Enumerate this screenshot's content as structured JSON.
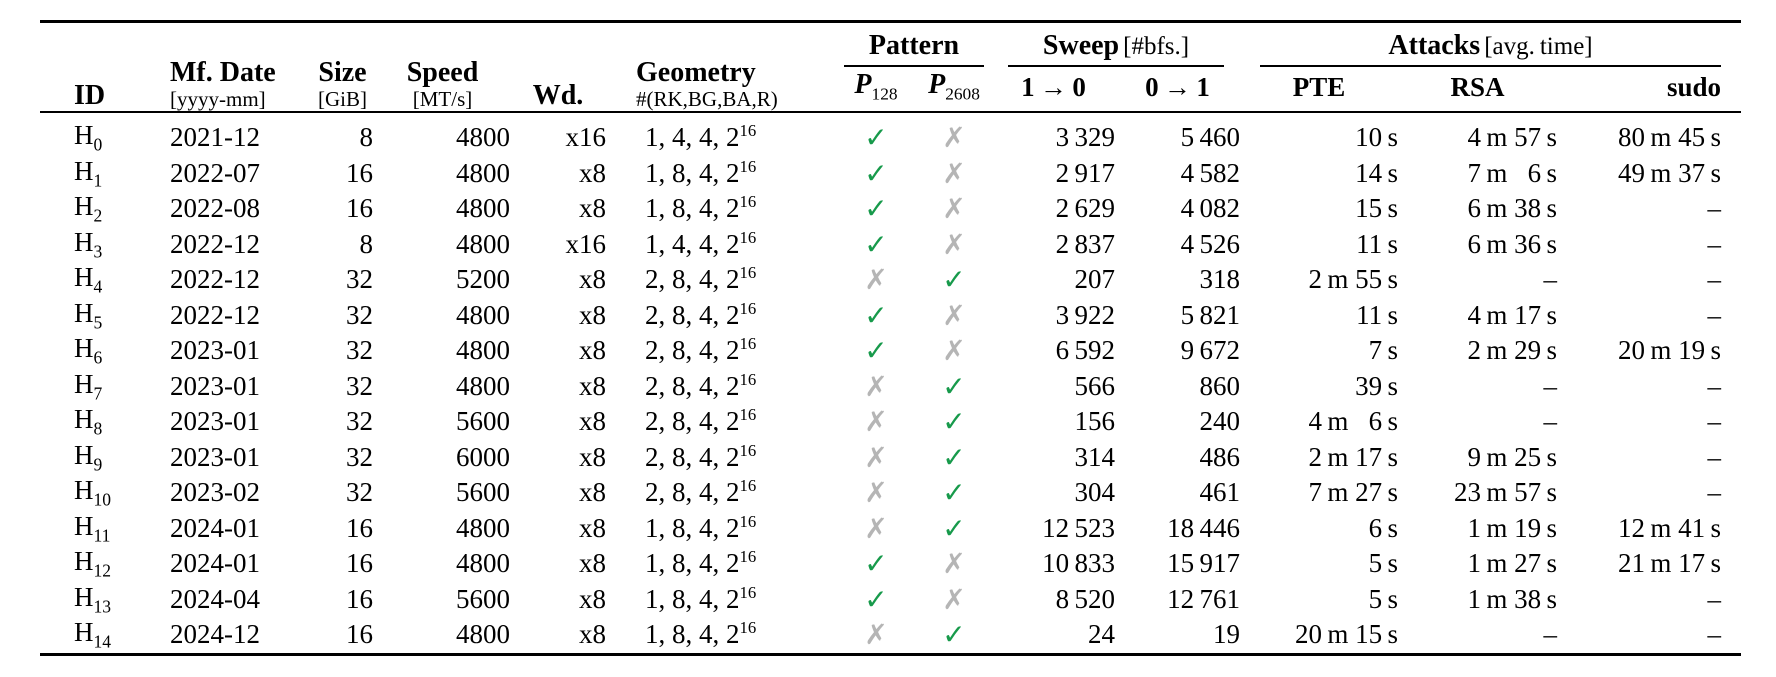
{
  "header": {
    "id": "ID",
    "mf_date": {
      "label": "Mf. Date",
      "unit": "[yyyy-mm]"
    },
    "size": {
      "label": "Size",
      "unit": "[GiB]"
    },
    "speed": {
      "label": "Speed",
      "unit": "[MT/s]"
    },
    "wd": "Wd.",
    "geometry": {
      "label": "Geometry",
      "unit": "#(RK,BG,BA,R)"
    },
    "pattern": {
      "label": "Pattern",
      "p128": {
        "base": "P",
        "sub": "128"
      },
      "p2608": {
        "base": "P",
        "sub": "2608"
      }
    },
    "sweep": {
      "label": "Sweep",
      "unit": "[#bfs.]",
      "col_1to0": "1 → 0",
      "col_0to1": "0 → 1"
    },
    "attacks": {
      "label": "Attacks",
      "unit": "[avg. time]",
      "pte": "PTE",
      "rsa": "RSA",
      "sudo": "sudo"
    }
  },
  "marks": {
    "check_glyph": "✓",
    "cross_glyph": "✗",
    "check_color": "#179a4b",
    "cross_color": "#b5b5b5"
  },
  "rows": [
    {
      "id": [
        "H",
        "0"
      ],
      "date": "2021-12",
      "size": "8",
      "speed": "4800",
      "wd": "x16",
      "geom": [
        "1, 4, 4, 2",
        "16"
      ],
      "p128": "✓",
      "p2608": "✗",
      "s10": "3 329",
      "s01": "5 460",
      "pte": "10 s",
      "rsa": "4 m 57 s",
      "sudo": "80 m 45 s"
    },
    {
      "id": [
        "H",
        "1"
      ],
      "date": "2022-07",
      "size": "16",
      "speed": "4800",
      "wd": "x8",
      "geom": [
        "1, 8, 4, 2",
        "16"
      ],
      "p128": "✓",
      "p2608": "✗",
      "s10": "2 917",
      "s01": "4 582",
      "pte": "14 s",
      "rsa": "7 m  6 s",
      "sudo": "49 m 37 s"
    },
    {
      "id": [
        "H",
        "2"
      ],
      "date": "2022-08",
      "size": "16",
      "speed": "4800",
      "wd": "x8",
      "geom": [
        "1, 8, 4, 2",
        "16"
      ],
      "p128": "✓",
      "p2608": "✗",
      "s10": "2 629",
      "s01": "4 082",
      "pte": "15 s",
      "rsa": "6 m 38 s",
      "sudo": "–"
    },
    {
      "id": [
        "H",
        "3"
      ],
      "date": "2022-12",
      "size": "8",
      "speed": "4800",
      "wd": "x16",
      "geom": [
        "1, 4, 4, 2",
        "16"
      ],
      "p128": "✓",
      "p2608": "✗",
      "s10": "2 837",
      "s01": "4 526",
      "pte": "11 s",
      "rsa": "6 m 36 s",
      "sudo": "–"
    },
    {
      "id": [
        "H",
        "4"
      ],
      "date": "2022-12",
      "size": "32",
      "speed": "5200",
      "wd": "x8",
      "geom": [
        "2, 8, 4, 2",
        "16"
      ],
      "p128": "✗",
      "p2608": "✓",
      "s10": "207",
      "s01": "318",
      "pte": "2 m 55 s",
      "rsa": "–",
      "sudo": "–"
    },
    {
      "id": [
        "H",
        "5"
      ],
      "date": "2022-12",
      "size": "32",
      "speed": "4800",
      "wd": "x8",
      "geom": [
        "2, 8, 4, 2",
        "16"
      ],
      "p128": "✓",
      "p2608": "✗",
      "s10": "3 922",
      "s01": "5 821",
      "pte": "11 s",
      "rsa": "4 m 17 s",
      "sudo": "–"
    },
    {
      "id": [
        "H",
        "6"
      ],
      "date": "2023-01",
      "size": "32",
      "speed": "4800",
      "wd": "x8",
      "geom": [
        "2, 8, 4, 2",
        "16"
      ],
      "p128": "✓",
      "p2608": "✗",
      "s10": "6 592",
      "s01": "9 672",
      "pte": "7 s",
      "rsa": "2 m 29 s",
      "sudo": "20 m 19 s"
    },
    {
      "id": [
        "H",
        "7"
      ],
      "date": "2023-01",
      "size": "32",
      "speed": "4800",
      "wd": "x8",
      "geom": [
        "2, 8, 4, 2",
        "16"
      ],
      "p128": "✗",
      "p2608": "✓",
      "s10": "566",
      "s01": "860",
      "pte": "39 s",
      "rsa": "–",
      "sudo": "–"
    },
    {
      "id": [
        "H",
        "8"
      ],
      "date": "2023-01",
      "size": "32",
      "speed": "5600",
      "wd": "x8",
      "geom": [
        "2, 8, 4, 2",
        "16"
      ],
      "p128": "✗",
      "p2608": "✓",
      "s10": "156",
      "s01": "240",
      "pte": "4 m  6 s",
      "rsa": "–",
      "sudo": "–"
    },
    {
      "id": [
        "H",
        "9"
      ],
      "date": "2023-01",
      "size": "32",
      "speed": "6000",
      "wd": "x8",
      "geom": [
        "2, 8, 4, 2",
        "16"
      ],
      "p128": "✗",
      "p2608": "✓",
      "s10": "314",
      "s01": "486",
      "pte": "2 m 17 s",
      "rsa": "9 m 25 s",
      "sudo": "–"
    },
    {
      "id": [
        "H",
        "10"
      ],
      "date": "2023-02",
      "size": "32",
      "speed": "5600",
      "wd": "x8",
      "geom": [
        "2, 8, 4, 2",
        "16"
      ],
      "p128": "✗",
      "p2608": "✓",
      "s10": "304",
      "s01": "461",
      "pte": "7 m 27 s",
      "rsa": "23 m 57 s",
      "sudo": "–"
    },
    {
      "id": [
        "H",
        "11"
      ],
      "date": "2024-01",
      "size": "16",
      "speed": "4800",
      "wd": "x8",
      "geom": [
        "1, 8, 4, 2",
        "16"
      ],
      "p128": "✗",
      "p2608": "✓",
      "s10": "12 523",
      "s01": "18 446",
      "pte": "6 s",
      "rsa": "1 m 19 s",
      "sudo": "12 m 41 s"
    },
    {
      "id": [
        "H",
        "12"
      ],
      "date": "2024-01",
      "size": "16",
      "speed": "4800",
      "wd": "x8",
      "geom": [
        "1, 8, 4, 2",
        "16"
      ],
      "p128": "✓",
      "p2608": "✗",
      "s10": "10 833",
      "s01": "15 917",
      "pte": "5 s",
      "rsa": "1 m 27 s",
      "sudo": "21 m 17 s"
    },
    {
      "id": [
        "H",
        "13"
      ],
      "date": "2024-04",
      "size": "16",
      "speed": "5600",
      "wd": "x8",
      "geom": [
        "1, 8, 4, 2",
        "16"
      ],
      "p128": "✓",
      "p2608": "✗",
      "s10": "8 520",
      "s01": "12 761",
      "pte": "5 s",
      "rsa": "1 m 38 s",
      "sudo": "–"
    },
    {
      "id": [
        "H",
        "14"
      ],
      "date": "2024-12",
      "size": "16",
      "speed": "4800",
      "wd": "x8",
      "geom": [
        "1, 8, 4, 2",
        "16"
      ],
      "p128": "✗",
      "p2608": "✓",
      "s10": "24",
      "s01": "19",
      "pte": "20 m 15 s",
      "rsa": "–",
      "sudo": "–"
    }
  ]
}
